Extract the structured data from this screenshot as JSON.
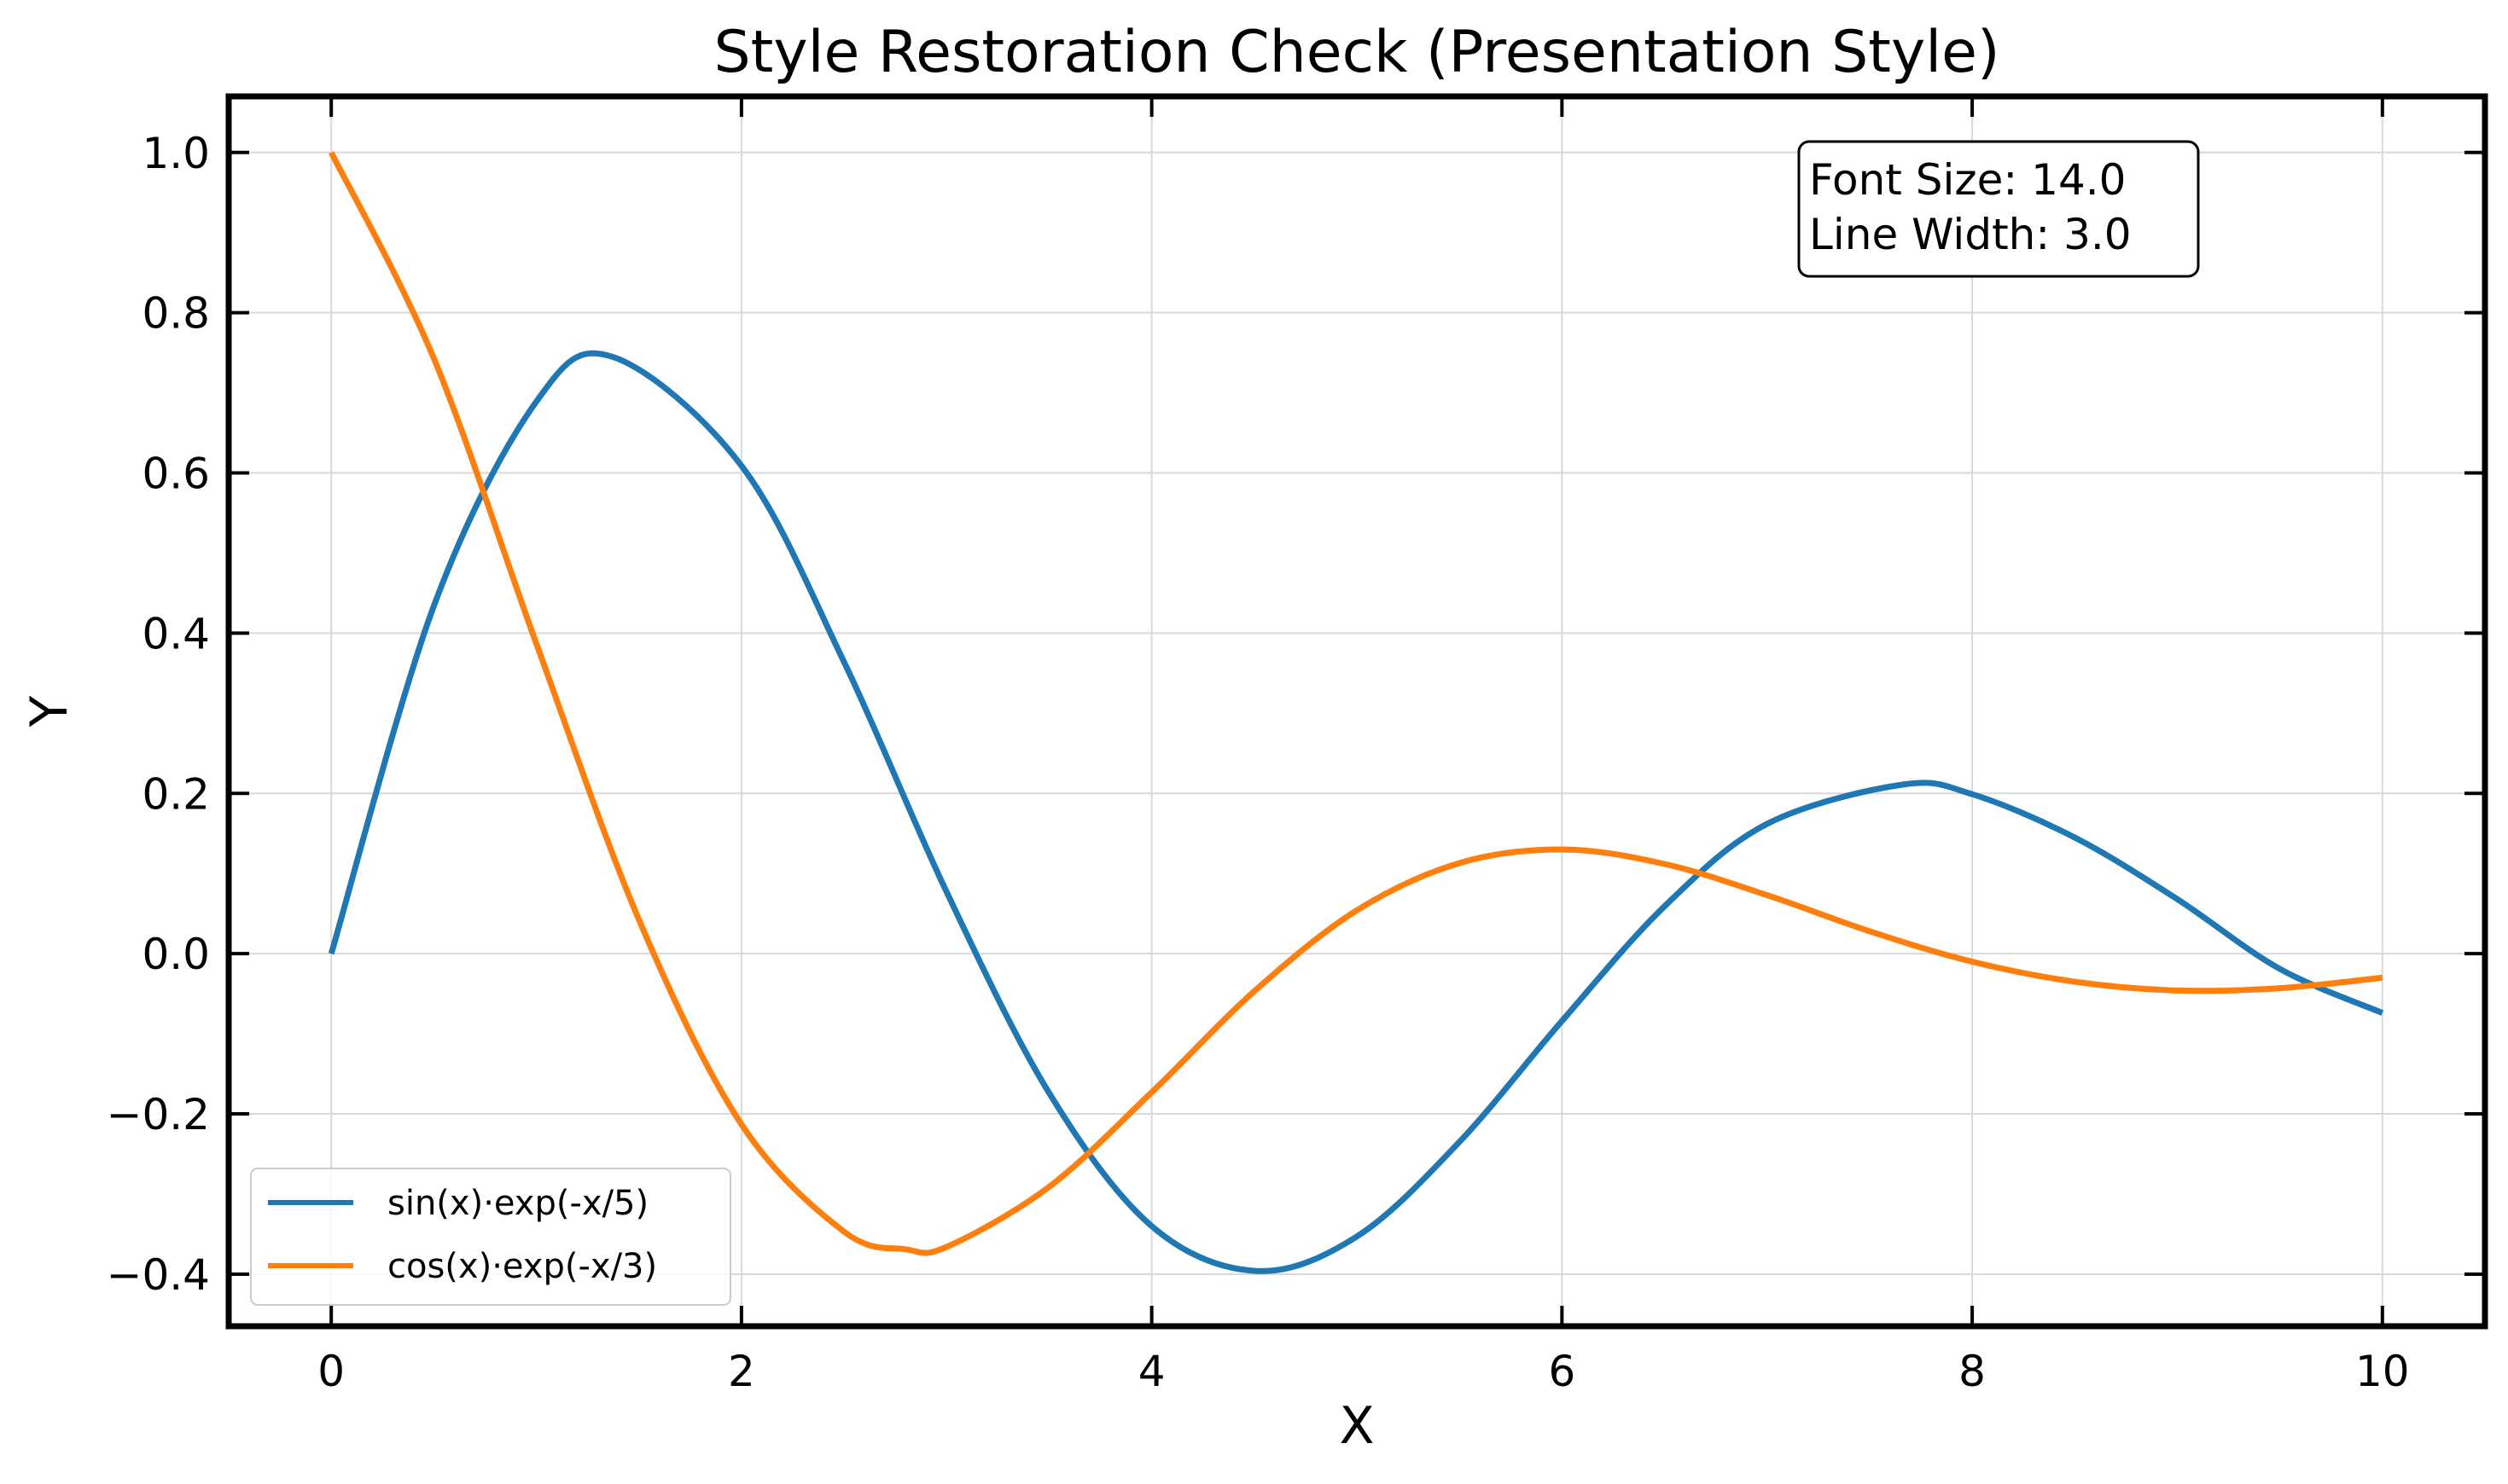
{
  "chart_data": {
    "type": "line",
    "title": "Style Restoration Check (Presentation Style)",
    "xlabel": "X",
    "ylabel": "Y",
    "xlim": [
      -0.5,
      10.5
    ],
    "ylim": [
      -0.465,
      1.07
    ],
    "xticks": [
      0,
      2,
      4,
      6,
      8,
      10
    ],
    "xtick_labels": [
      "0",
      "2",
      "4",
      "6",
      "8",
      "10"
    ],
    "yticks": [
      -0.4,
      -0.2,
      0.0,
      0.2,
      0.4,
      0.6,
      0.8,
      1.0
    ],
    "ytick_labels": [
      "−0.4",
      "−0.2",
      "0.0",
      "0.2",
      "0.4",
      "0.6",
      "0.8",
      "1.0"
    ],
    "grid": true,
    "legend_position": "lower-left",
    "annotation": {
      "lines": [
        "Font Size: 14.0",
        "Line Width: 3.0"
      ],
      "position": "top-right"
    },
    "series": [
      {
        "name": "sin(x)·exp(-x/5)",
        "color": "#1f77b4",
        "x": [
          0,
          0.5,
          1,
          1.37,
          2,
          2.5,
          3,
          3.5,
          4,
          4.51,
          5,
          5.5,
          6,
          6.5,
          7,
          7.66,
          8,
          8.5,
          9,
          9.5,
          10
        ],
        "y": [
          0.0,
          0.434,
          0.689,
          0.745,
          0.609,
          0.364,
          0.077,
          -0.174,
          -0.34,
          -0.396,
          -0.353,
          -0.235,
          -0.084,
          0.059,
          0.162,
          0.211,
          0.199,
          0.145,
          0.068,
          -0.019,
          -0.074
        ]
      },
      {
        "name": "cos(x)·exp(-x/3)",
        "color": "#ff7f0e",
        "x": [
          0,
          0.5,
          1,
          1.5,
          2,
          2.5,
          2.8,
          3,
          3.5,
          4,
          4.5,
          5,
          5.5,
          6,
          6.5,
          7,
          7.5,
          8,
          8.5,
          9,
          9.5,
          10
        ],
        "y": [
          1.0,
          0.743,
          0.387,
          0.0425,
          -0.213,
          -0.347,
          -0.369,
          -0.366,
          -0.291,
          -0.173,
          -0.047,
          0.054,
          0.113,
          0.13,
          0.112,
          0.073,
          0.028,
          -0.01,
          -0.035,
          -0.046,
          -0.043,
          -0.03
        ]
      }
    ]
  }
}
